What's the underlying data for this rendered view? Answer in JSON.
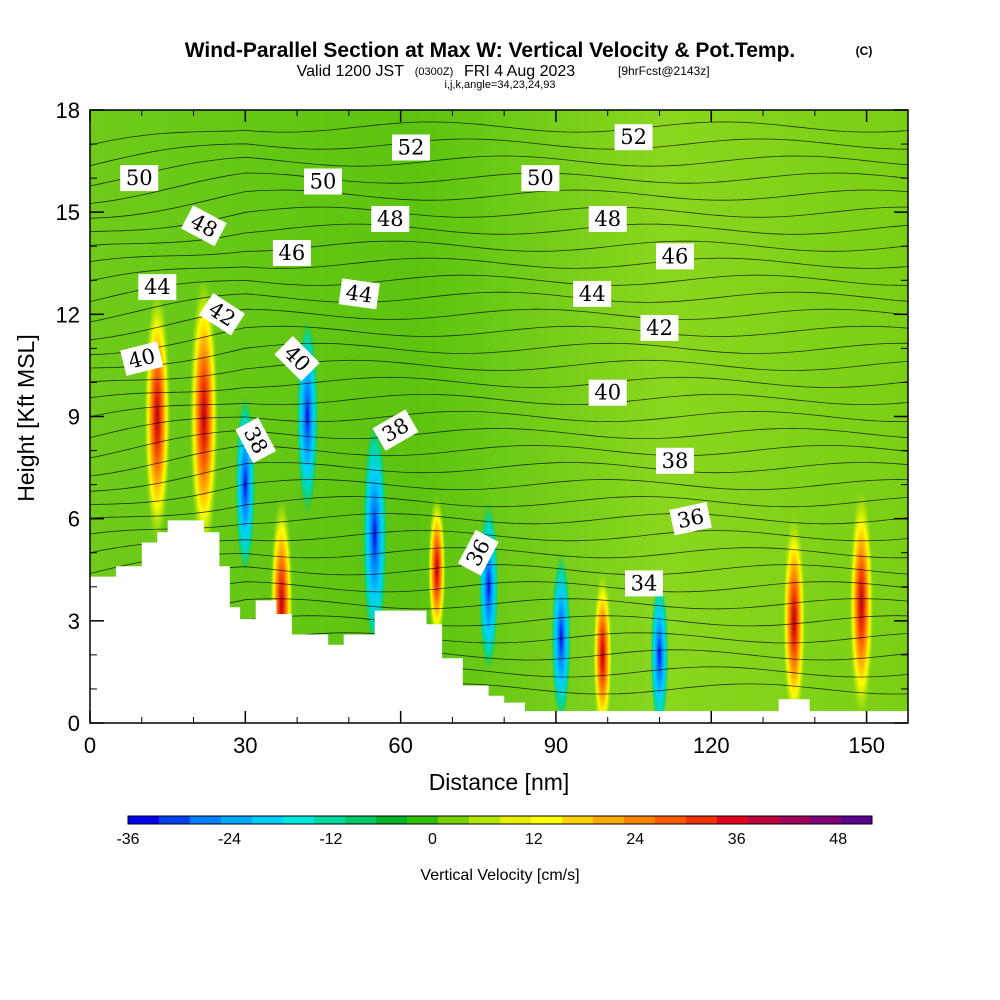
{
  "title": {
    "main": "Wind-Parallel Section at Max W: Vertical Velocity & Pot.Temp.",
    "copyright": "(C)",
    "valid_prefix": "Valid 1200 JST",
    "valid_utc": "(0300Z)",
    "valid_date": "FRI 4 Aug 2023",
    "forecast": "[9hrFcst@2143z]",
    "params": "i,j,k,angle=34,23,24,93"
  },
  "chart_data": {
    "type": "heatmap",
    "xlabel": "Distance [nm]",
    "ylabel": "Height [Kft MSL]",
    "xlim": [
      0,
      158
    ],
    "ylim": [
      0,
      18
    ],
    "x_ticks": [
      "0",
      "30",
      "60",
      "90",
      "120",
      "150"
    ],
    "y_ticks": [
      "0",
      "3",
      "6",
      "9",
      "12",
      "15",
      "18"
    ],
    "colorbar": {
      "label": "Vertical Velocity [cm/s]",
      "range": [
        -36,
        52
      ],
      "ticks": [
        "-36",
        "-24",
        "-12",
        "0",
        "12",
        "24",
        "36",
        "48"
      ],
      "colors": [
        "#0000f0",
        "#0040f0",
        "#0080ff",
        "#00a8ff",
        "#00ccff",
        "#00e8e0",
        "#00d8a0",
        "#00c864",
        "#00b428",
        "#32be00",
        "#78d200",
        "#b4e600",
        "#e6f000",
        "#ffff00",
        "#ffd200",
        "#ffaa00",
        "#ff8200",
        "#ff5a00",
        "#f03200",
        "#e0001e",
        "#c0003c",
        "#a0005a",
        "#800078",
        "#5a0090"
      ]
    },
    "vertical_velocity_maxima": [
      {
        "x": 13,
        "y": 9.0,
        "value": 40
      },
      {
        "x": 22,
        "y": 9.0,
        "value": 46
      },
      {
        "x": 37,
        "y": 3.5,
        "value": 30
      },
      {
        "x": 67,
        "y": 4.5,
        "value": 16
      },
      {
        "x": 99,
        "y": 2.0,
        "value": 20
      },
      {
        "x": 136,
        "y": 3.0,
        "value": 30
      },
      {
        "x": 149,
        "y": 3.5,
        "value": 34
      }
    ],
    "vertical_velocity_minima": [
      {
        "x": 30,
        "y": 7.0,
        "value": -22
      },
      {
        "x": 42,
        "y": 9.0,
        "value": -26
      },
      {
        "x": 55,
        "y": 5.5,
        "value": -34
      },
      {
        "x": 77,
        "y": 4.0,
        "value": -20
      },
      {
        "x": 91,
        "y": 2.5,
        "value": -20
      },
      {
        "x": 110,
        "y": 2.0,
        "value": -16
      }
    ],
    "theta_contour_labels": [
      {
        "text": "50",
        "x": 9.5,
        "y": 16.0,
        "angle": 0
      },
      {
        "text": "50",
        "x": 45,
        "y": 15.9,
        "angle": 0
      },
      {
        "text": "50",
        "x": 87,
        "y": 16.0,
        "angle": 0
      },
      {
        "text": "52",
        "x": 62,
        "y": 16.9,
        "angle": 0
      },
      {
        "text": "52",
        "x": 105,
        "y": 17.2,
        "angle": 0
      },
      {
        "text": "48",
        "x": 22,
        "y": 14.6,
        "angle": 28
      },
      {
        "text": "48",
        "x": 58,
        "y": 14.8,
        "angle": 0
      },
      {
        "text": "48",
        "x": 100,
        "y": 14.8,
        "angle": 0
      },
      {
        "text": "46",
        "x": 39,
        "y": 13.8,
        "angle": 0
      },
      {
        "text": "46",
        "x": 113,
        "y": 13.7,
        "angle": 0
      },
      {
        "text": "44",
        "x": 13,
        "y": 12.8,
        "angle": 0
      },
      {
        "text": "44",
        "x": 52,
        "y": 12.6,
        "angle": 8
      },
      {
        "text": "44",
        "x": 97,
        "y": 12.6,
        "angle": 0
      },
      {
        "text": "42",
        "x": 25.5,
        "y": 12.0,
        "angle": 33
      },
      {
        "text": "42",
        "x": 110,
        "y": 11.6,
        "angle": 0
      },
      {
        "text": "40",
        "x": 10,
        "y": 10.7,
        "angle": -14
      },
      {
        "text": "40",
        "x": 40,
        "y": 10.7,
        "angle": 45
      },
      {
        "text": "40",
        "x": 100,
        "y": 9.7,
        "angle": 0
      },
      {
        "text": "38",
        "x": 32,
        "y": 8.3,
        "angle": 62
      },
      {
        "text": "38",
        "x": 59,
        "y": 8.6,
        "angle": -30
      },
      {
        "text": "38",
        "x": 113,
        "y": 7.7,
        "angle": 0
      },
      {
        "text": "36",
        "x": 75,
        "y": 5.0,
        "angle": -62
      },
      {
        "text": "36",
        "x": 116,
        "y": 6.0,
        "angle": -12
      },
      {
        "text": "34",
        "x": 107,
        "y": 4.1,
        "angle": 0
      }
    ]
  }
}
